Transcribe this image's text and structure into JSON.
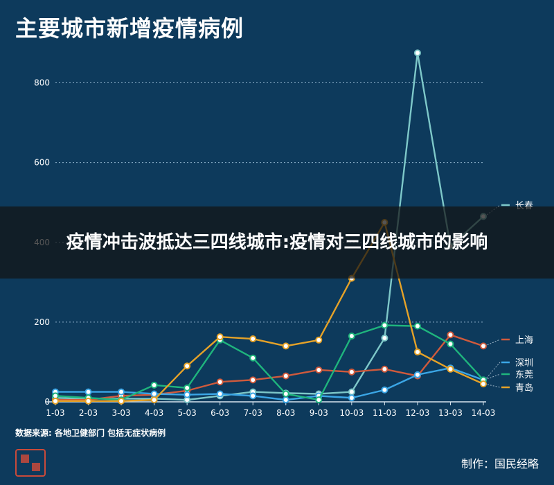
{
  "title": "主要城市新增疫情病例",
  "source": "数据来源: 各地卫健部门 包括无症状病例",
  "credit": "制作：国民经略",
  "overlay_headline": "疫情冲击波抵达三四线城市:疫情对三四线城市的影响",
  "chart_data": {
    "type": "line",
    "title": "主要城市新增疫情病例",
    "xlabel": "",
    "ylabel": "",
    "ylim": [
      0,
      900
    ],
    "y_ticks": [
      0,
      200,
      400,
      600,
      800
    ],
    "grid": "horizontal-dotted",
    "legend_placement": "right-inline",
    "categories": [
      "1-03",
      "2-03",
      "3-03",
      "4-03",
      "5-03",
      "6-03",
      "7-03",
      "8-03",
      "9-03",
      "10-03",
      "11-03",
      "12-03",
      "13-03",
      "14-03"
    ],
    "series": [
      {
        "name": "长春",
        "color": "#7ec8c9",
        "values": [
          10,
          8,
          8,
          8,
          5,
          15,
          25,
          22,
          20,
          25,
          160,
          875,
          390,
          465
        ]
      },
      {
        "name": "上海",
        "color": "#d05a3c",
        "values": [
          5,
          5,
          15,
          18,
          28,
          50,
          55,
          65,
          80,
          75,
          82,
          65,
          168,
          140
        ]
      },
      {
        "name": "深圳",
        "color": "#3ba6e6",
        "values": [
          25,
          25,
          25,
          20,
          18,
          20,
          15,
          5,
          15,
          10,
          30,
          68,
          85,
          55
        ]
      },
      {
        "name": "东莞",
        "color": "#1fb57d",
        "values": [
          15,
          10,
          5,
          42,
          35,
          155,
          110,
          20,
          5,
          165,
          192,
          190,
          145,
          55
        ]
      },
      {
        "name": "青岛",
        "color": "#e5a228",
        "values": [
          2,
          2,
          2,
          5,
          90,
          163,
          158,
          140,
          155,
          310,
          450,
          125,
          82,
          45
        ]
      }
    ]
  }
}
